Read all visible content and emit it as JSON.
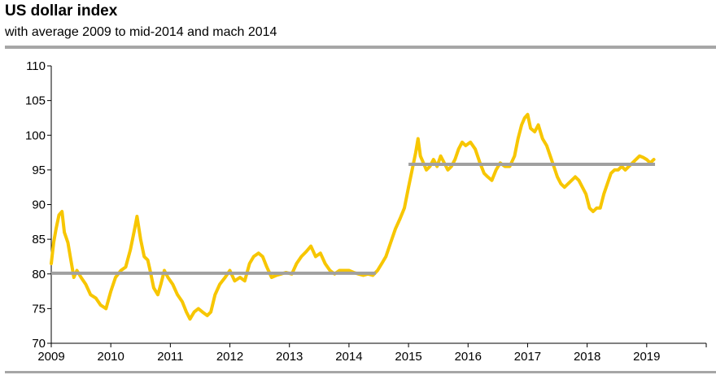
{
  "header": {
    "title": "US dollar index",
    "subtitle": "with average 2009 to mid-2014 and mach 2014"
  },
  "colors": {
    "series": "#f7c600",
    "average": "#a0a0a0",
    "rule": "#a6a6a6",
    "axis": "#000000"
  },
  "chart_data": {
    "type": "line",
    "title": "US dollar index",
    "subtitle": "with average 2009 to mid-2014 and mach 2014",
    "xlabel": "",
    "ylabel": "",
    "xlim": [
      2009.0,
      2020.0
    ],
    "ylim": [
      70,
      110
    ],
    "yticks": [
      70,
      75,
      80,
      85,
      90,
      95,
      100,
      105,
      110
    ],
    "xticks": [
      "2009",
      "2010",
      "2011",
      "2012",
      "2013",
      "2014",
      "2015",
      "2016",
      "2017",
      "2018",
      "2019"
    ],
    "grid": false,
    "legend": "none",
    "series": [
      {
        "values": [
          [
            2009.0,
            81.5
          ],
          [
            2009.04,
            84.5
          ],
          [
            2009.08,
            86.5
          ],
          [
            2009.13,
            88.5
          ],
          [
            2009.18,
            89.0
          ],
          [
            2009.22,
            86.0
          ],
          [
            2009.28,
            84.5
          ],
          [
            2009.33,
            82.0
          ],
          [
            2009.38,
            79.5
          ],
          [
            2009.43,
            80.5
          ],
          [
            2009.5,
            79.5
          ],
          [
            2009.58,
            78.5
          ],
          [
            2009.66,
            77.0
          ],
          [
            2009.75,
            76.5
          ],
          [
            2009.83,
            75.5
          ],
          [
            2009.92,
            75.0
          ],
          [
            2010.0,
            77.5
          ],
          [
            2010.08,
            79.5
          ],
          [
            2010.17,
            80.5
          ],
          [
            2010.25,
            81.0
          ],
          [
            2010.33,
            83.5
          ],
          [
            2010.4,
            86.5
          ],
          [
            2010.44,
            88.3
          ],
          [
            2010.5,
            85.0
          ],
          [
            2010.56,
            82.5
          ],
          [
            2010.62,
            82.0
          ],
          [
            2010.66,
            80.5
          ],
          [
            2010.72,
            78.0
          ],
          [
            2010.79,
            77.0
          ],
          [
            2010.84,
            78.5
          ],
          [
            2010.9,
            80.5
          ],
          [
            2010.96,
            79.5
          ],
          [
            2011.04,
            78.5
          ],
          [
            2011.12,
            77.0
          ],
          [
            2011.2,
            76.0
          ],
          [
            2011.27,
            74.5
          ],
          [
            2011.33,
            73.5
          ],
          [
            2011.4,
            74.5
          ],
          [
            2011.47,
            75.0
          ],
          [
            2011.54,
            74.5
          ],
          [
            2011.62,
            74.0
          ],
          [
            2011.68,
            74.5
          ],
          [
            2011.75,
            77.0
          ],
          [
            2011.83,
            78.5
          ],
          [
            2011.92,
            79.5
          ],
          [
            2012.0,
            80.5
          ],
          [
            2012.08,
            79.0
          ],
          [
            2012.17,
            79.5
          ],
          [
            2012.25,
            79.0
          ],
          [
            2012.33,
            81.5
          ],
          [
            2012.4,
            82.5
          ],
          [
            2012.48,
            83.0
          ],
          [
            2012.55,
            82.5
          ],
          [
            2012.62,
            81.0
          ],
          [
            2012.7,
            79.5
          ],
          [
            2012.78,
            79.8
          ],
          [
            2012.86,
            80.0
          ],
          [
            2012.94,
            80.2
          ],
          [
            2013.04,
            80.0
          ],
          [
            2013.12,
            81.5
          ],
          [
            2013.2,
            82.5
          ],
          [
            2013.28,
            83.2
          ],
          [
            2013.36,
            84.0
          ],
          [
            2013.44,
            82.5
          ],
          [
            2013.52,
            83.0
          ],
          [
            2013.6,
            81.5
          ],
          [
            2013.68,
            80.5
          ],
          [
            2013.76,
            80.0
          ],
          [
            2013.84,
            80.5
          ],
          [
            2013.92,
            80.5
          ],
          [
            2014.0,
            80.5
          ],
          [
            2014.08,
            80.2
          ],
          [
            2014.16,
            80.0
          ],
          [
            2014.24,
            79.8
          ],
          [
            2014.32,
            80.0
          ],
          [
            2014.4,
            79.8
          ],
          [
            2014.48,
            80.5
          ],
          [
            2014.55,
            81.5
          ],
          [
            2014.62,
            82.5
          ],
          [
            2014.7,
            84.5
          ],
          [
            2014.78,
            86.5
          ],
          [
            2014.86,
            88.0
          ],
          [
            2014.93,
            89.5
          ],
          [
            2015.0,
            92.5
          ],
          [
            2015.06,
            95.0
          ],
          [
            2015.12,
            97.5
          ],
          [
            2015.16,
            99.5
          ],
          [
            2015.2,
            97.0
          ],
          [
            2015.25,
            96.0
          ],
          [
            2015.3,
            95.0
          ],
          [
            2015.36,
            95.5
          ],
          [
            2015.42,
            96.5
          ],
          [
            2015.48,
            95.5
          ],
          [
            2015.54,
            97.0
          ],
          [
            2015.6,
            96.0
          ],
          [
            2015.66,
            95.0
          ],
          [
            2015.72,
            95.5
          ],
          [
            2015.78,
            96.5
          ],
          [
            2015.84,
            98.0
          ],
          [
            2015.9,
            99.0
          ],
          [
            2015.96,
            98.5
          ],
          [
            2016.04,
            99.0
          ],
          [
            2016.12,
            98.0
          ],
          [
            2016.2,
            96.0
          ],
          [
            2016.27,
            94.5
          ],
          [
            2016.33,
            94.0
          ],
          [
            2016.4,
            93.5
          ],
          [
            2016.47,
            95.0
          ],
          [
            2016.54,
            96.0
          ],
          [
            2016.62,
            95.5
          ],
          [
            2016.7,
            95.5
          ],
          [
            2016.78,
            97.0
          ],
          [
            2016.84,
            99.5
          ],
          [
            2016.9,
            101.5
          ],
          [
            2016.95,
            102.5
          ],
          [
            2017.0,
            103.0
          ],
          [
            2017.05,
            101.0
          ],
          [
            2017.12,
            100.5
          ],
          [
            2017.18,
            101.5
          ],
          [
            2017.25,
            99.5
          ],
          [
            2017.32,
            98.5
          ],
          [
            2017.38,
            97.0
          ],
          [
            2017.44,
            95.5
          ],
          [
            2017.5,
            94.0
          ],
          [
            2017.56,
            93.0
          ],
          [
            2017.62,
            92.5
          ],
          [
            2017.68,
            93.0
          ],
          [
            2017.74,
            93.5
          ],
          [
            2017.8,
            94.0
          ],
          [
            2017.86,
            93.5
          ],
          [
            2017.92,
            92.5
          ],
          [
            2017.98,
            91.5
          ],
          [
            2018.04,
            89.5
          ],
          [
            2018.1,
            89.0
          ],
          [
            2018.16,
            89.5
          ],
          [
            2018.22,
            89.5
          ],
          [
            2018.28,
            91.5
          ],
          [
            2018.34,
            93.0
          ],
          [
            2018.4,
            94.5
          ],
          [
            2018.46,
            95.0
          ],
          [
            2018.52,
            95.0
          ],
          [
            2018.58,
            95.5
          ],
          [
            2018.64,
            95.0
          ],
          [
            2018.7,
            95.5
          ],
          [
            2018.76,
            96.0
          ],
          [
            2018.82,
            96.5
          ],
          [
            2018.88,
            97.0
          ],
          [
            2018.94,
            96.8
          ],
          [
            2019.0,
            96.5
          ],
          [
            2019.06,
            96.0
          ],
          [
            2019.12,
            96.5
          ]
        ]
      },
      {
        "type": "average-line",
        "segments": [
          {
            "x": [
              2009.0,
              2014.45
            ],
            "y": 80.1
          },
          {
            "x": [
              2015.0,
              2019.14
            ],
            "y": 95.8
          }
        ]
      }
    ]
  }
}
